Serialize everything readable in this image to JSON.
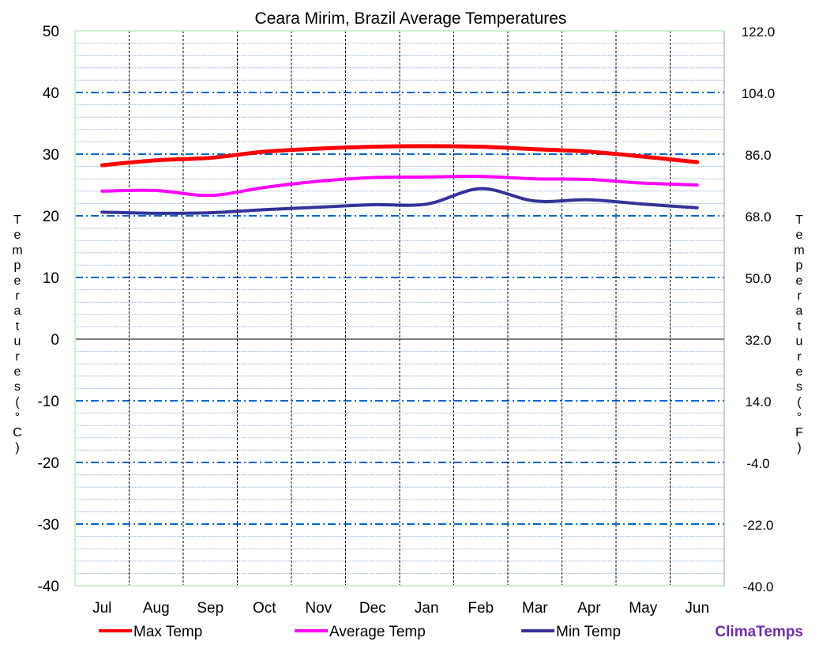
{
  "chart_data": {
    "type": "line",
    "title": "Ceara Mirim, Brazil Average Temperatures",
    "categories": [
      "Jul",
      "Aug",
      "Sep",
      "Oct",
      "Nov",
      "Dec",
      "Jan",
      "Feb",
      "Mar",
      "Apr",
      "May",
      "Jun"
    ],
    "ylabel": "Temperatures (°C)",
    "y2label": "Temperatures (°F)",
    "ylim": [
      -40,
      50
    ],
    "y2lim": [
      -40.0,
      122.0
    ],
    "yticks": [
      "50",
      "40",
      "30",
      "20",
      "10",
      "0",
      "-10",
      "-20",
      "-30",
      "-40"
    ],
    "y2ticks": [
      "122.0",
      "104.0",
      "86.0",
      "68.0",
      "50.0",
      "32.0",
      "14.0",
      "-4.0",
      "-22.0",
      "-40.0"
    ],
    "grid": true,
    "legend_position": "bottom",
    "series": [
      {
        "name": "Max Temp",
        "color": "#ff0000",
        "values": [
          28.2,
          29.0,
          29.4,
          30.4,
          30.9,
          31.2,
          31.3,
          31.2,
          30.8,
          30.4,
          29.6,
          28.7
        ]
      },
      {
        "name": "Average Temp",
        "color": "#ff00ff",
        "values": [
          24.0,
          24.1,
          23.3,
          24.6,
          25.6,
          26.2,
          26.3,
          26.4,
          26.0,
          25.9,
          25.3,
          25.0
        ]
      },
      {
        "name": "Min Temp",
        "color": "#333399",
        "values": [
          20.6,
          20.4,
          20.5,
          21.0,
          21.4,
          21.8,
          21.9,
          24.4,
          22.4,
          22.6,
          21.9,
          21.3
        ]
      }
    ]
  },
  "brand": {
    "text": "ClimaTemps",
    "color": "#7030a0"
  }
}
